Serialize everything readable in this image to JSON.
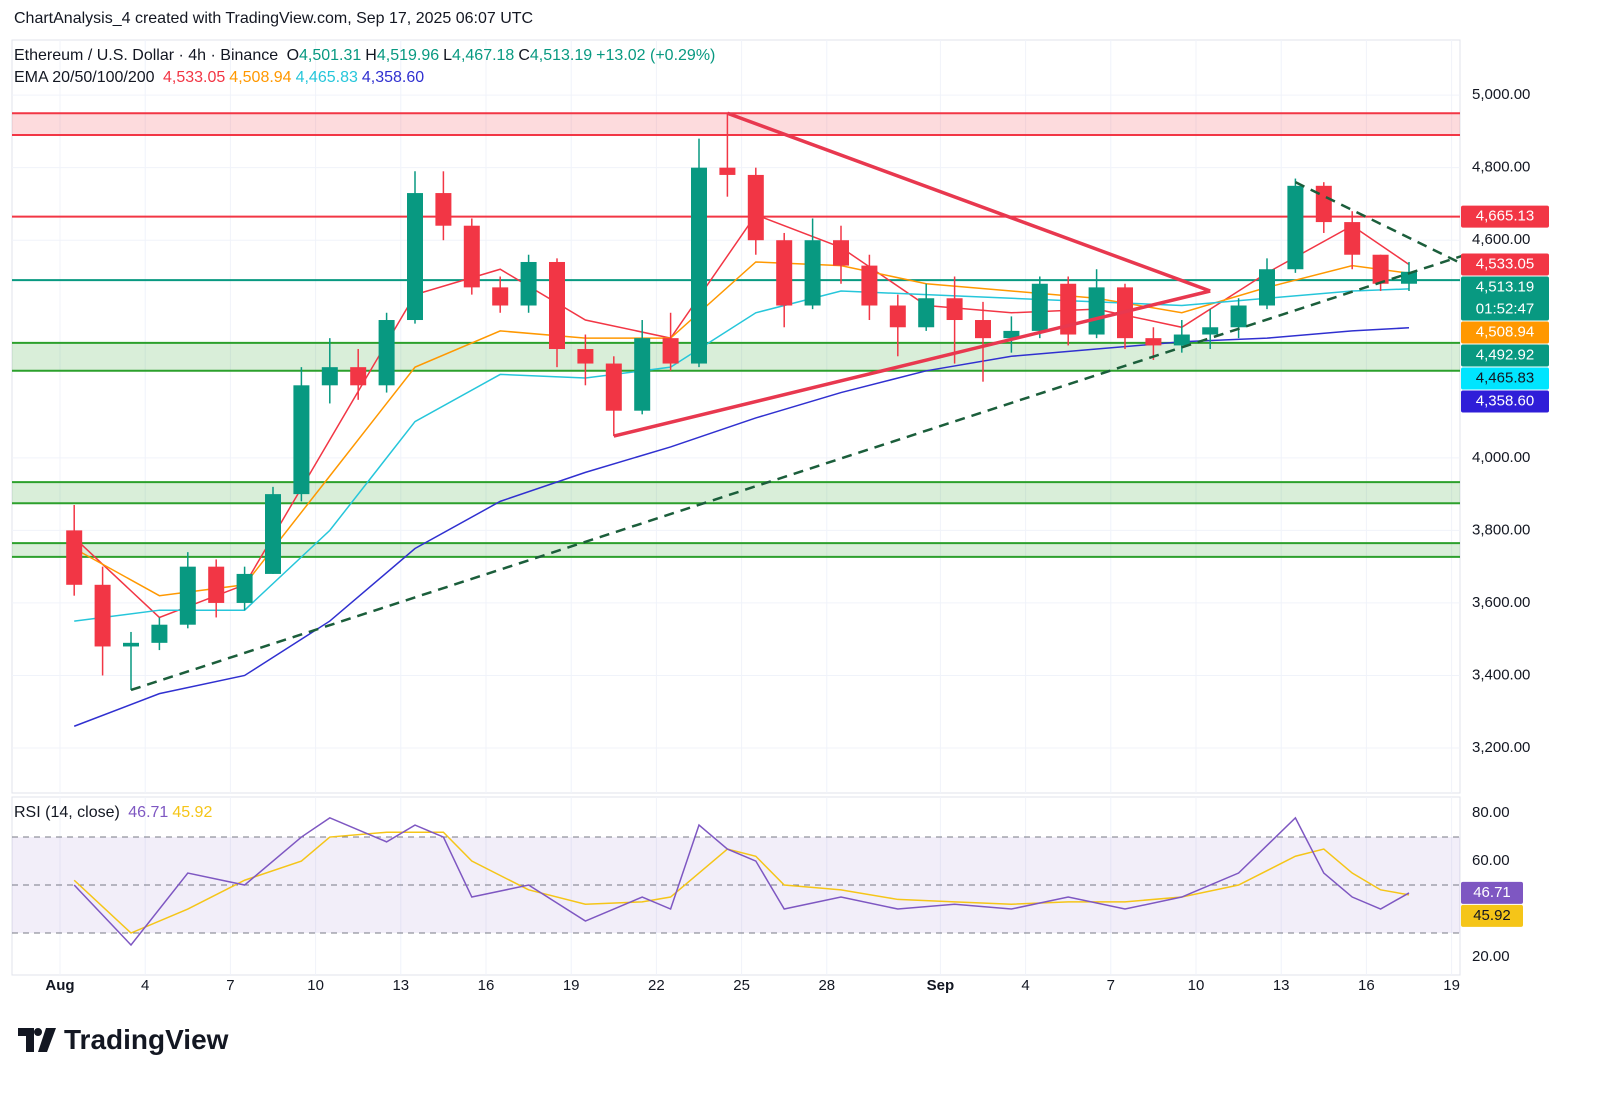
{
  "header": {
    "created": "ChartAnalysis_4 created with TradingView.com, Sep 17, 2025 06:07 UTC",
    "symbol": "Ethereum / U.S. Dollar · 4h · Binance",
    "ohlc": [
      [
        "O",
        "4,501.31"
      ],
      [
        "H",
        "4,519.96"
      ],
      [
        "L",
        "4,467.18"
      ],
      [
        "C",
        "4,513.19"
      ]
    ],
    "change": "+13.02 (+0.29%)",
    "ema_label": "EMA 20/50/100/200"
  },
  "footer": {
    "brand": "TradingView"
  },
  "chart_data": [
    {
      "type": "candlestick",
      "categories": [
        "Aug 1",
        "Aug 2",
        "Aug 3",
        "Aug 4",
        "Aug 5",
        "Aug 6",
        "Aug 7",
        "Aug 8",
        "Aug 9",
        "Aug 10",
        "Aug 11",
        "Aug 12",
        "Aug 13",
        "Aug 14",
        "Aug 15",
        "Aug 16",
        "Aug 17",
        "Aug 18",
        "Aug 19",
        "Aug 20",
        "Aug 21",
        "Aug 22",
        "Aug 23",
        "Aug 24",
        "Aug 25",
        "Aug 26",
        "Aug 27",
        "Aug 28",
        "Aug 29",
        "Aug 30",
        "Aug 31",
        "Sep 1",
        "Sep 2",
        "Sep 3",
        "Sep 4",
        "Sep 5",
        "Sep 6",
        "Sep 7",
        "Sep 8",
        "Sep 9",
        "Sep 10",
        "Sep 11",
        "Sep 12",
        "Sep 13",
        "Sep 14",
        "Sep 15",
        "Sep 16",
        "Sep 17",
        "Sep 18",
        "Sep 19"
      ],
      "open": [
        3800,
        3650,
        3480,
        3490,
        3540,
        3700,
        3600,
        3680,
        3900,
        4200,
        4250,
        4200,
        4380,
        4730,
        4640,
        4470,
        4420,
        4540,
        4300,
        4260,
        4130,
        4330,
        4260,
        4800,
        4780,
        4600,
        4420,
        4600,
        4530,
        4420,
        4360,
        4440,
        4380,
        4330,
        4350,
        4480,
        4340,
        4470,
        4330,
        4310,
        4340,
        4360,
        4420,
        4520,
        4750,
        4650,
        4560,
        4480,
        null,
        null
      ],
      "high": [
        3870,
        3700,
        3520,
        3560,
        3740,
        3720,
        3700,
        3920,
        4250,
        4330,
        4300,
        4400,
        4790,
        4790,
        4660,
        4500,
        4560,
        4550,
        4340,
        4280,
        4380,
        4400,
        4880,
        4950,
        4800,
        4620,
        4660,
        4640,
        4560,
        4450,
        4480,
        4500,
        4430,
        4390,
        4500,
        4500,
        4520,
        4480,
        4360,
        4380,
        4410,
        4440,
        4550,
        4770,
        4760,
        4680,
        4560,
        4540,
        null,
        null
      ],
      "low": [
        3620,
        3400,
        3360,
        3470,
        3530,
        3560,
        3580,
        3680,
        3880,
        4150,
        4160,
        4180,
        4370,
        4600,
        4450,
        4400,
        4400,
        4250,
        4200,
        4060,
        4120,
        4240,
        4250,
        4720,
        4560,
        4360,
        4410,
        4480,
        4380,
        4280,
        4350,
        4260,
        4210,
        4290,
        4330,
        4310,
        4330,
        4300,
        4270,
        4290,
        4300,
        4330,
        4410,
        4510,
        4620,
        4520,
        4460,
        4460,
        null,
        null
      ],
      "close": [
        3650,
        3480,
        3490,
        3540,
        3700,
        3600,
        3680,
        3900,
        4200,
        4250,
        4200,
        4380,
        4730,
        4640,
        4470,
        4420,
        4540,
        4300,
        4260,
        4130,
        4330,
        4260,
        4800,
        4780,
        4600,
        4420,
        4600,
        4530,
        4420,
        4360,
        4440,
        4380,
        4330,
        4350,
        4480,
        4340,
        4470,
        4330,
        4310,
        4340,
        4360,
        4420,
        4520,
        4750,
        4650,
        4560,
        4480,
        4513,
        null,
        null
      ],
      "up_color": "#089981",
      "down_color": "#f23645",
      "ylim": [
        3076,
        5152
      ],
      "yticks": [
        {
          "value": 5000,
          "label": "5,000.00"
        },
        {
          "value": 4800,
          "label": "4,800.00"
        },
        {
          "value": 4600,
          "label": "4,600.00"
        },
        {
          "value": 4000,
          "label": "4,000.00"
        },
        {
          "value": 3800,
          "label": "3,800.00"
        },
        {
          "value": 3600,
          "label": "3,600.00"
        },
        {
          "value": 3400,
          "label": "3,400.00"
        },
        {
          "value": 3200,
          "label": "3,200.00"
        }
      ],
      "xticks": [
        {
          "value": "Aug 1",
          "label": "Aug"
        },
        {
          "value": "Aug 4",
          "label": "4"
        },
        {
          "value": "Aug 7",
          "label": "7"
        },
        {
          "value": "Aug 10",
          "label": "10"
        },
        {
          "value": "Aug 13",
          "label": "13"
        },
        {
          "value": "Aug 16",
          "label": "16"
        },
        {
          "value": "Aug 19",
          "label": "19"
        },
        {
          "value": "Aug 22",
          "label": "22"
        },
        {
          "value": "Aug 25",
          "label": "25"
        },
        {
          "value": "Aug 28",
          "label": "28"
        },
        {
          "value": "Sep 1",
          "label": "Sep"
        },
        {
          "value": "Sep 4",
          "label": "4"
        },
        {
          "value": "Sep 7",
          "label": "7"
        },
        {
          "value": "Sep 10",
          "label": "10"
        },
        {
          "value": "Sep 13",
          "label": "13"
        },
        {
          "value": "Sep 16",
          "label": "16"
        },
        {
          "value": "Sep 19",
          "label": "19"
        }
      ],
      "grid": true,
      "series": [
        {
          "color": "#f23645",
          "last_label": "4,533.05",
          "x": [
            "Aug 1",
            "Aug 4",
            "Aug 7",
            "Aug 10",
            "Aug 13",
            "Aug 16",
            "Aug 19",
            "Aug 22",
            "Aug 25",
            "Aug 28",
            "Aug 31",
            "Sep 3",
            "Sep 6",
            "Sep 9",
            "Sep 12",
            "Sep 15",
            "Sep 17"
          ],
          "values": [
            3780,
            3560,
            3650,
            4050,
            4450,
            4520,
            4380,
            4330,
            4670,
            4580,
            4420,
            4400,
            4410,
            4360,
            4510,
            4640,
            4533.05
          ]
        },
        {
          "color": "#ff9800",
          "last_label": "4,508.94",
          "x": [
            "Aug 1",
            "Aug 4",
            "Aug 7",
            "Aug 10",
            "Aug 13",
            "Aug 16",
            "Aug 19",
            "Aug 22",
            "Aug 25",
            "Aug 28",
            "Aug 31",
            "Sep 3",
            "Sep 6",
            "Sep 9",
            "Sep 12",
            "Sep 15",
            "Sep 17"
          ],
          "values": [
            3750,
            3620,
            3650,
            3950,
            4250,
            4350,
            4330,
            4330,
            4540,
            4530,
            4480,
            4460,
            4440,
            4400,
            4470,
            4530,
            4508.94
          ]
        },
        {
          "color": "#26c6da",
          "last_label": "4,465.83",
          "x": [
            "Aug 1",
            "Aug 4",
            "Aug 7",
            "Aug 10",
            "Aug 13",
            "Aug 16",
            "Aug 19",
            "Aug 22",
            "Aug 25",
            "Aug 28",
            "Aug 31",
            "Sep 3",
            "Sep 6",
            "Sep 9",
            "Sep 12",
            "Sep 15",
            "Sep 17"
          ],
          "values": [
            3550,
            3580,
            3580,
            3800,
            4100,
            4230,
            4220,
            4250,
            4400,
            4460,
            4450,
            4440,
            4430,
            4420,
            4440,
            4460,
            4465.83
          ]
        },
        {
          "color": "#3030d0",
          "last_label": "4,358.60",
          "x": [
            "Aug 1",
            "Aug 4",
            "Aug 7",
            "Aug 10",
            "Aug 13",
            "Aug 16",
            "Aug 19",
            "Aug 22",
            "Aug 25",
            "Aug 28",
            "Aug 31",
            "Sep 3",
            "Sep 6",
            "Sep 9",
            "Sep 12",
            "Sep 15",
            "Sep 17"
          ],
          "values": [
            3260,
            3350,
            3400,
            3550,
            3750,
            3880,
            3960,
            4030,
            4110,
            4180,
            4240,
            4280,
            4300,
            4320,
            4330,
            4350,
            4358.6
          ]
        }
      ],
      "zones": [
        {
          "from": 4890,
          "to": 4950,
          "color": "#f23645"
        },
        {
          "from": 4240,
          "to": 4317,
          "color": "#2ca02c"
        },
        {
          "from": 3875,
          "to": 3933,
          "color": "#2ca02c"
        },
        {
          "from": 3727,
          "to": 3765,
          "color": "#2ca02c"
        }
      ],
      "levels": [
        {
          "value": 4665,
          "color": "#f23645"
        },
        {
          "value": 4490,
          "color": "#089981"
        }
      ],
      "trendlines": [
        {
          "color": "#e8384f",
          "dashed": false,
          "points": [
            [
              "Aug 24",
              4950
            ],
            [
              "Sep 10",
              4460
            ]
          ]
        },
        {
          "color": "#e8384f",
          "dashed": false,
          "points": [
            [
              "Aug 20",
              4060
            ],
            [
              "Sep 10",
              4460
            ]
          ]
        },
        {
          "color": "#1b5e3b",
          "dashed": true,
          "points": [
            [
              "Aug 3",
              3360
            ],
            [
              "Sep 19",
              4560
            ]
          ]
        },
        {
          "color": "#1b5e3b",
          "dashed": true,
          "points": [
            [
              "Sep 13",
              4760
            ],
            [
              "Sep 19",
              4530
            ]
          ]
        }
      ],
      "price_tags": [
        {
          "value": 4665.13,
          "label": "4,665.13",
          "color": "#f23645",
          "text_color": "#ffffff"
        },
        {
          "value": 4533.05,
          "label": "4,533.05",
          "color": "#f23645",
          "text_color": "#ffffff"
        },
        {
          "value": 4513.19,
          "label": "4,513.19",
          "countdown": "01:52:47",
          "color": "#089981",
          "text_color": "#ffffff"
        },
        {
          "value": 4508.94,
          "label": "4,508.94",
          "color": "#ff9800",
          "text_color": "#ffffff"
        },
        {
          "value": 4492.92,
          "label": "4,492.92",
          "color": "#089981",
          "text_color": "#ffffff"
        },
        {
          "value": 4465.83,
          "label": "4,465.83",
          "color": "#00e5ff",
          "text_color": "#131722"
        },
        {
          "value": 4358.6,
          "label": "4,358.60",
          "color": "#2f1ed8",
          "text_color": "#ffffff"
        }
      ]
    },
    {
      "type": "line",
      "title": "RSI (14, close)",
      "ylim": [
        12.5,
        86.7
      ],
      "yticks": [
        {
          "value": 80,
          "label": "80.00"
        },
        {
          "value": 60,
          "label": "60.00"
        },
        {
          "value": 20,
          "label": "20.00"
        }
      ],
      "band": [
        30,
        70
      ],
      "levels": [
        70,
        50,
        30
      ],
      "series": [
        {
          "color": "#7e57c2",
          "last_label": "46.71",
          "tag_text_color": "#ffffff",
          "x": [
            "Aug 1",
            "Aug 3",
            "Aug 5",
            "Aug 7",
            "Aug 9",
            "Aug 10",
            "Aug 12",
            "Aug 13",
            "Aug 14",
            "Aug 15",
            "Aug 17",
            "Aug 19",
            "Aug 21",
            "Aug 22",
            "Aug 23",
            "Aug 24",
            "Aug 25",
            "Aug 26",
            "Aug 28",
            "Aug 30",
            "Sep 1",
            "Sep 3",
            "Sep 5",
            "Sep 7",
            "Sep 9",
            "Sep 11",
            "Sep 13",
            "Sep 14",
            "Sep 15",
            "Sep 16",
            "Sep 17"
          ],
          "values": [
            50,
            25,
            55,
            50,
            70,
            78,
            68,
            75,
            70,
            45,
            50,
            35,
            45,
            40,
            75,
            65,
            60,
            40,
            45,
            40,
            42,
            40,
            45,
            40,
            45,
            55,
            78,
            55,
            45,
            40,
            46.71
          ]
        },
        {
          "color": "#f5c518",
          "last_label": "45.92",
          "tag_text_color": "#131722",
          "x": [
            "Aug 1",
            "Aug 3",
            "Aug 5",
            "Aug 7",
            "Aug 9",
            "Aug 10",
            "Aug 12",
            "Aug 13",
            "Aug 14",
            "Aug 15",
            "Aug 17",
            "Aug 19",
            "Aug 21",
            "Aug 22",
            "Aug 23",
            "Aug 24",
            "Aug 25",
            "Aug 26",
            "Aug 28",
            "Aug 30",
            "Sep 1",
            "Sep 3",
            "Sep 5",
            "Sep 7",
            "Sep 9",
            "Sep 11",
            "Sep 13",
            "Sep 14",
            "Sep 15",
            "Sep 16",
            "Sep 17"
          ],
          "values": [
            52,
            30,
            40,
            52,
            60,
            70,
            72,
            72,
            72,
            60,
            48,
            42,
            43,
            45,
            55,
            65,
            62,
            50,
            48,
            44,
            43,
            42,
            43,
            43,
            45,
            50,
            62,
            65,
            55,
            48,
            45.92
          ]
        }
      ]
    }
  ]
}
